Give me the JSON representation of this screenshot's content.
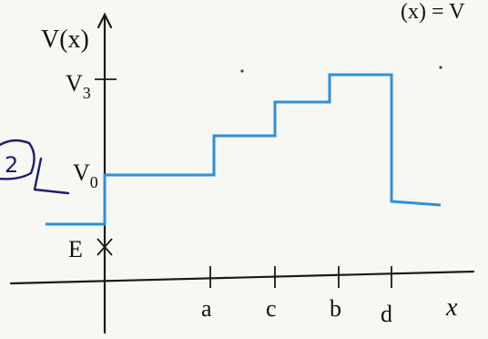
{
  "chart_data": {
    "type": "line",
    "title": "",
    "ylabel": "V(x)",
    "xlabel": "x",
    "x_markers": [
      "a",
      "c",
      "b",
      "d"
    ],
    "y_markers": [
      "V3",
      "V0",
      "E"
    ],
    "series": [
      {
        "name": "",
        "color": "#2f8fd8",
        "segments": [
          {
            "x_from": "-inf",
            "x_to": "0",
            "level": "E_region_left"
          },
          {
            "x_from": "0",
            "x_to": "a",
            "level": "V0"
          },
          {
            "x_from": "a",
            "x_to": "c",
            "level": "step_1"
          },
          {
            "x_from": "c",
            "x_to": "b",
            "level": "step_2"
          },
          {
            "x_from": "b",
            "x_to": "d",
            "level": "V3"
          },
          {
            "x_from": "d",
            "x_to": "+inf",
            "level": "step_right"
          }
        ]
      }
    ],
    "grid": false
  },
  "labels": {
    "y_axis": "V(x)",
    "x_axis": "x",
    "v3": "V",
    "v3_sub": "3",
    "v0": "V",
    "v0_sub": "0",
    "e": "E",
    "tick_a": "a",
    "tick_c": "c",
    "tick_b": "b",
    "tick_d": "d"
  },
  "annotations": {
    "circled_mark": "2",
    "top_right_fragment": "(x) = V"
  },
  "colors": {
    "potential_line": "#2f8fd8",
    "ink": "#1d1d6e"
  }
}
